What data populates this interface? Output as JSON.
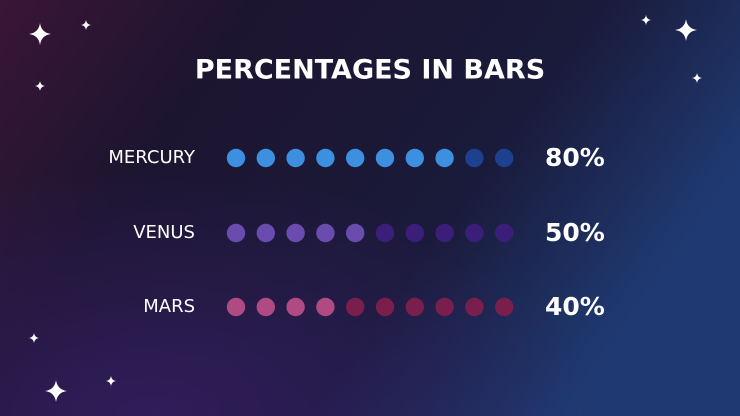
{
  "chart_data": {
    "type": "dot-bar",
    "title": "PERCENTAGES IN BARS",
    "categories": [
      "MERCURY",
      "VENUS",
      "MARS"
    ],
    "values": [
      80,
      50,
      40
    ],
    "value_labels": [
      "80%",
      "50%",
      "40%"
    ],
    "xlim": [
      0,
      100
    ],
    "colors": [
      "#3d8fe0",
      "#6a4cae",
      "#b04a82"
    ],
    "empty_colors": [
      "#1e418f",
      "#3a1e7a",
      "#7a1e4e"
    ]
  }
}
